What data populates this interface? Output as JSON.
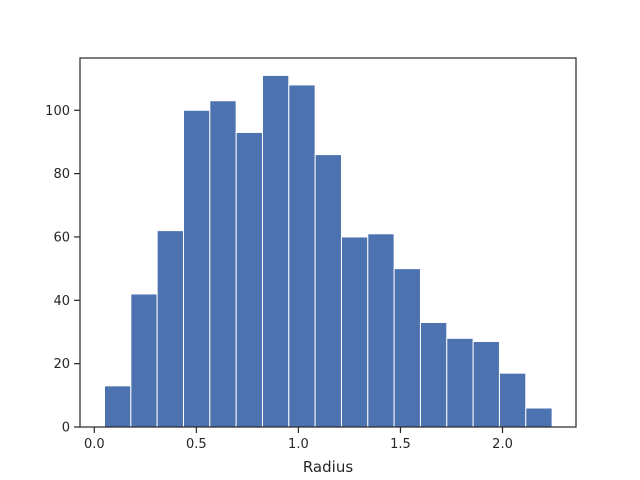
{
  "chart_data": {
    "type": "bar",
    "subtype": "histogram",
    "title": "",
    "xlabel": "Radius",
    "ylabel": "",
    "xlim": [
      -0.07,
      2.36
    ],
    "ylim": [
      0,
      116.5
    ],
    "xticks": [
      0.0,
      0.5,
      1.0,
      1.5,
      2.0
    ],
    "xtick_labels": [
      "0.0",
      "0.5",
      "1.0",
      "1.5",
      "2.0"
    ],
    "yticks": [
      0,
      20,
      40,
      60,
      80,
      100
    ],
    "ytick_labels": [
      "0",
      "20",
      "40",
      "60",
      "80",
      "100"
    ],
    "bin_edges": [
      0.05,
      0.179,
      0.308,
      0.437,
      0.566,
      0.695,
      0.824,
      0.953,
      1.082,
      1.211,
      1.34,
      1.469,
      1.598,
      1.727,
      1.856,
      1.985,
      2.114,
      2.243
    ],
    "counts": [
      13,
      42,
      62,
      100,
      103,
      93,
      111,
      108,
      86,
      60,
      61,
      50,
      33,
      28,
      27,
      17,
      6
    ],
    "bar_color": "#4c72b0",
    "edge_color": "#ffffff",
    "grid": false,
    "legend": "none"
  }
}
